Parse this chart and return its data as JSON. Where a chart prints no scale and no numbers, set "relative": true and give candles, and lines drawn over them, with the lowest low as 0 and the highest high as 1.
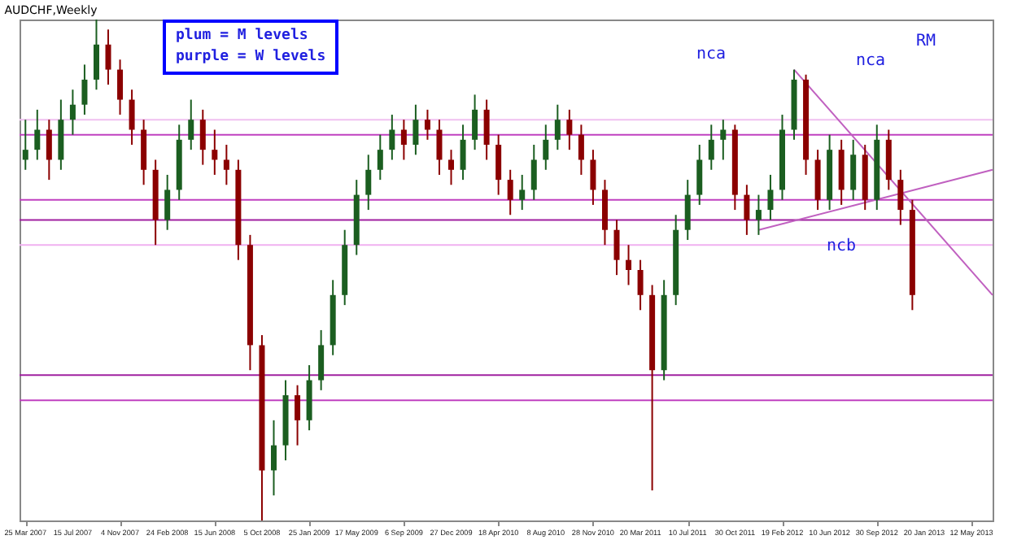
{
  "chart_data": {
    "type": "candlestick",
    "title": "AUDCHF,Weekly",
    "relative": true,
    "grid": false,
    "x": [
      "2007-03-25",
      "2007-04-22",
      "2007-05-20",
      "2007-06-17",
      "2007-07-15",
      "2007-08-12",
      "2007-09-09",
      "2007-10-07",
      "2007-11-04",
      "2007-12-02",
      "2007-12-30",
      "2008-01-27",
      "2008-02-24",
      "2008-03-23",
      "2008-04-20",
      "2008-05-18",
      "2008-06-15",
      "2008-07-13",
      "2008-08-10",
      "2008-09-07",
      "2008-10-05",
      "2008-11-02",
      "2008-11-30",
      "2008-12-28",
      "2009-01-25",
      "2009-02-22",
      "2009-03-22",
      "2009-04-19",
      "2009-05-17",
      "2009-06-14",
      "2009-07-12",
      "2009-08-09",
      "2009-09-06",
      "2009-10-04",
      "2009-11-01",
      "2009-11-29",
      "2009-12-27",
      "2010-01-24",
      "2010-02-21",
      "2010-03-21",
      "2010-04-18",
      "2010-05-16",
      "2010-06-13",
      "2010-07-11",
      "2010-08-08",
      "2010-09-05",
      "2010-10-03",
      "2010-10-31",
      "2010-11-28",
      "2010-12-26",
      "2011-01-23",
      "2011-02-20",
      "2011-03-20",
      "2011-04-17",
      "2011-05-15",
      "2011-06-12",
      "2011-07-10",
      "2011-08-07",
      "2011-09-04",
      "2011-10-02",
      "2011-10-30",
      "2011-11-27",
      "2011-12-25",
      "2012-01-22",
      "2012-02-19",
      "2012-03-18",
      "2012-04-15",
      "2012-05-13",
      "2012-06-10",
      "2012-07-08",
      "2012-08-05",
      "2012-09-02",
      "2012-09-30",
      "2012-10-28",
      "2012-11-25",
      "2012-12-23"
    ],
    "ohlc": [
      [
        0.72,
        0.8,
        0.7,
        0.74
      ],
      [
        0.74,
        0.82,
        0.72,
        0.78
      ],
      [
        0.78,
        0.8,
        0.68,
        0.72
      ],
      [
        0.72,
        0.84,
        0.7,
        0.8
      ],
      [
        0.8,
        0.86,
        0.77,
        0.83
      ],
      [
        0.83,
        0.91,
        0.81,
        0.88
      ],
      [
        0.88,
        1.0,
        0.86,
        0.95
      ],
      [
        0.95,
        0.98,
        0.87,
        0.9
      ],
      [
        0.9,
        0.92,
        0.81,
        0.84
      ],
      [
        0.84,
        0.86,
        0.75,
        0.78
      ],
      [
        0.78,
        0.8,
        0.67,
        0.7
      ],
      [
        0.7,
        0.72,
        0.55,
        0.6
      ],
      [
        0.6,
        0.69,
        0.58,
        0.66
      ],
      [
        0.66,
        0.79,
        0.64,
        0.76
      ],
      [
        0.76,
        0.84,
        0.74,
        0.8
      ],
      [
        0.8,
        0.82,
        0.71,
        0.74
      ],
      [
        0.74,
        0.78,
        0.69,
        0.72
      ],
      [
        0.72,
        0.75,
        0.67,
        0.7
      ],
      [
        0.7,
        0.72,
        0.52,
        0.55
      ],
      [
        0.55,
        0.57,
        0.3,
        0.35
      ],
      [
        0.35,
        0.37,
        0.0,
        0.1
      ],
      [
        0.1,
        0.2,
        0.05,
        0.15
      ],
      [
        0.15,
        0.28,
        0.12,
        0.25
      ],
      [
        0.25,
        0.27,
        0.15,
        0.2
      ],
      [
        0.2,
        0.31,
        0.18,
        0.28
      ],
      [
        0.28,
        0.38,
        0.26,
        0.35
      ],
      [
        0.35,
        0.48,
        0.33,
        0.45
      ],
      [
        0.45,
        0.58,
        0.43,
        0.55
      ],
      [
        0.55,
        0.68,
        0.53,
        0.65
      ],
      [
        0.65,
        0.73,
        0.62,
        0.7
      ],
      [
        0.7,
        0.77,
        0.68,
        0.74
      ],
      [
        0.74,
        0.81,
        0.72,
        0.78
      ],
      [
        0.78,
        0.8,
        0.72,
        0.75
      ],
      [
        0.75,
        0.83,
        0.73,
        0.8
      ],
      [
        0.8,
        0.82,
        0.76,
        0.78
      ],
      [
        0.78,
        0.8,
        0.69,
        0.72
      ],
      [
        0.72,
        0.74,
        0.67,
        0.7
      ],
      [
        0.7,
        0.79,
        0.68,
        0.76
      ],
      [
        0.76,
        0.85,
        0.74,
        0.82
      ],
      [
        0.82,
        0.84,
        0.72,
        0.75
      ],
      [
        0.75,
        0.77,
        0.65,
        0.68
      ],
      [
        0.68,
        0.7,
        0.61,
        0.64
      ],
      [
        0.64,
        0.69,
        0.62,
        0.66
      ],
      [
        0.66,
        0.75,
        0.64,
        0.72
      ],
      [
        0.72,
        0.79,
        0.7,
        0.76
      ],
      [
        0.76,
        0.83,
        0.74,
        0.8
      ],
      [
        0.8,
        0.82,
        0.74,
        0.77
      ],
      [
        0.77,
        0.79,
        0.69,
        0.72
      ],
      [
        0.72,
        0.74,
        0.63,
        0.66
      ],
      [
        0.66,
        0.68,
        0.55,
        0.58
      ],
      [
        0.58,
        0.6,
        0.49,
        0.52
      ],
      [
        0.52,
        0.55,
        0.47,
        0.5
      ],
      [
        0.5,
        0.52,
        0.42,
        0.45
      ],
      [
        0.45,
        0.47,
        0.06,
        0.3
      ],
      [
        0.3,
        0.48,
        0.28,
        0.45
      ],
      [
        0.45,
        0.61,
        0.43,
        0.58
      ],
      [
        0.58,
        0.68,
        0.56,
        0.65
      ],
      [
        0.65,
        0.75,
        0.63,
        0.72
      ],
      [
        0.72,
        0.79,
        0.7,
        0.76
      ],
      [
        0.76,
        0.8,
        0.72,
        0.78
      ],
      [
        0.78,
        0.79,
        0.62,
        0.65
      ],
      [
        0.65,
        0.67,
        0.57,
        0.6
      ],
      [
        0.6,
        0.65,
        0.57,
        0.62
      ],
      [
        0.62,
        0.69,
        0.6,
        0.66
      ],
      [
        0.66,
        0.81,
        0.64,
        0.78
      ],
      [
        0.78,
        0.9,
        0.76,
        0.88
      ],
      [
        0.88,
        0.89,
        0.69,
        0.72
      ],
      [
        0.72,
        0.74,
        0.62,
        0.64
      ],
      [
        0.64,
        0.77,
        0.62,
        0.74
      ],
      [
        0.74,
        0.76,
        0.63,
        0.66
      ],
      [
        0.66,
        0.76,
        0.64,
        0.73
      ],
      [
        0.73,
        0.75,
        0.62,
        0.64
      ],
      [
        0.64,
        0.79,
        0.62,
        0.76
      ],
      [
        0.76,
        0.78,
        0.66,
        0.68
      ],
      [
        0.68,
        0.7,
        0.59,
        0.62
      ],
      [
        0.62,
        0.64,
        0.42,
        0.45
      ]
    ],
    "colors": [
      "#1b5e20",
      "#1b5e20",
      "#8b0000",
      "#1b5e20",
      "#1b5e20",
      "#1b5e20",
      "#1b5e20",
      "#8b0000",
      "#8b0000",
      "#8b0000",
      "#8b0000",
      "#8b0000",
      "#1b5e20",
      "#1b5e20",
      "#1b5e20",
      "#8b0000",
      "#8b0000",
      "#8b0000",
      "#8b0000",
      "#8b0000",
      "#8b0000",
      "#1b5e20",
      "#1b5e20",
      "#8b0000",
      "#1b5e20",
      "#1b5e20",
      "#1b5e20",
      "#1b5e20",
      "#1b5e20",
      "#1b5e20",
      "#1b5e20",
      "#1b5e20",
      "#8b0000",
      "#1b5e20",
      "#8b0000",
      "#8b0000",
      "#8b0000",
      "#1b5e20",
      "#1b5e20",
      "#8b0000",
      "#8b0000",
      "#8b0000",
      "#1b5e20",
      "#1b5e20",
      "#1b5e20",
      "#1b5e20",
      "#8b0000",
      "#8b0000",
      "#8b0000",
      "#8b0000",
      "#8b0000",
      "#8b0000",
      "#8b0000",
      "#8b0000",
      "#1b5e20",
      "#1b5e20",
      "#1b5e20",
      "#1b5e20",
      "#1b5e20",
      "#1b5e20",
      "#8b0000",
      "#8b0000",
      "#1b5e20",
      "#1b5e20",
      "#1b5e20",
      "#1b5e20",
      "#8b0000",
      "#8b0000",
      "#1b5e20",
      "#8b0000",
      "#1b5e20",
      "#8b0000",
      "#1b5e20",
      "#8b0000",
      "#8b0000",
      "#8b0000"
    ],
    "series": [
      {
        "type": "line",
        "color": "#c060c0",
        "x": [
          "2012-03-18",
          "2013-07-01"
        ],
        "values": [
          0.9,
          0.45
        ]
      },
      {
        "type": "line",
        "color": "#c060c0",
        "x": [
          "2011-12-25",
          "2013-07-01"
        ],
        "values": [
          0.58,
          0.7
        ]
      }
    ],
    "xlim": [
      "2007-03-11",
      "2013-07-01"
    ],
    "xticks": [
      {
        "value": "2007-03-25",
        "label": "25 Mar 2007"
      },
      {
        "value": "2007-07-15",
        "label": "15 Jul 2007"
      },
      {
        "value": "2007-11-04",
        "label": "4 Nov 2007"
      },
      {
        "value": "2008-02-24",
        "label": "24 Feb 2008"
      },
      {
        "value": "2008-06-15",
        "label": "15 Jun 2008"
      },
      {
        "value": "2008-10-05",
        "label": "5 Oct 2008"
      },
      {
        "value": "2009-01-25",
        "label": "25 Jan 2009"
      },
      {
        "value": "2009-05-17",
        "label": "17 May 2009"
      },
      {
        "value": "2009-09-06",
        "label": "6 Sep 2009"
      },
      {
        "value": "2009-12-27",
        "label": "27 Dec 2009"
      },
      {
        "value": "2010-04-18",
        "label": "18 Apr 2010"
      },
      {
        "value": "2010-08-08",
        "label": "8 Aug 2010"
      },
      {
        "value": "2010-11-28",
        "label": "28 Nov 2010"
      },
      {
        "value": "2011-03-20",
        "label": "20 Mar 2011"
      },
      {
        "value": "2011-07-10",
        "label": "10 Jul 2011"
      },
      {
        "value": "2011-10-30",
        "label": "30 Oct 2011"
      },
      {
        "value": "2012-02-19",
        "label": "19 Feb 2012"
      },
      {
        "value": "2012-06-10",
        "label": "10 Jun 2012"
      },
      {
        "value": "2012-09-30",
        "label": "30 Sep 2012"
      },
      {
        "value": "2013-01-20",
        "label": "20 Jan 2013"
      },
      {
        "value": "2013-05-12",
        "label": "12 May 2013"
      }
    ],
    "ref_lines": [
      {
        "axis": "y",
        "value": 0.8,
        "color": "#f0c0f0"
      },
      {
        "axis": "y",
        "value": 0.77,
        "color": "#c040c0"
      },
      {
        "axis": "y",
        "value": 0.64,
        "color": "#c040c0"
      },
      {
        "axis": "y",
        "value": 0.6,
        "color": "#a020a0"
      },
      {
        "axis": "y",
        "value": 0.55,
        "color": "#f0b0f0"
      },
      {
        "axis": "y",
        "value": 0.29,
        "color": "#a020a0"
      },
      {
        "axis": "y",
        "value": 0.24,
        "color": "#c040c0"
      }
    ],
    "annotations": [
      "plum = M levels",
      "purple = W levels",
      "nca",
      "nca",
      "ncb",
      "RM"
    ]
  }
}
